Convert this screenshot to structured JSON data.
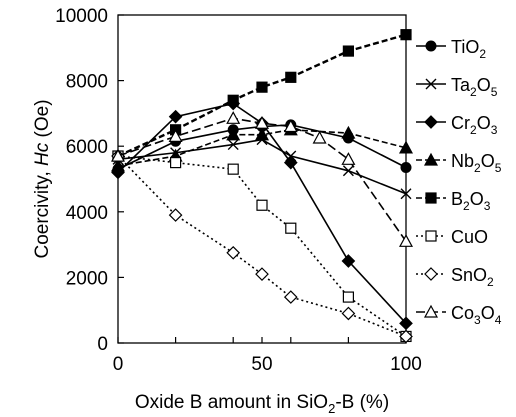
{
  "chart_data": {
    "type": "line",
    "xlabel": {
      "pre": "Oxide B amount in SiO",
      "sub": "2",
      "post": "-B (%)"
    },
    "ylabel": {
      "pre": "Coercivity, ",
      "italic": "Hc",
      "post": " (Oe)"
    },
    "xlim": [
      0,
      100
    ],
    "ylim": [
      0,
      10000
    ],
    "x_ticks": [
      0,
      20,
      40,
      50,
      60,
      80,
      100
    ],
    "x_tick_labels": [
      0,
      50,
      100
    ],
    "y_ticks": [
      0,
      2000,
      4000,
      6000,
      8000,
      10000
    ],
    "grid": false,
    "legend_position": "right",
    "series": [
      {
        "name": "TiO2",
        "label_parts": [
          [
            "TiO",
            false
          ],
          [
            "2",
            true
          ]
        ],
        "marker": "circle",
        "dash": "solid",
        "x": [
          0,
          20,
          40,
          50,
          60,
          80,
          100
        ],
        "y": [
          5300,
          6150,
          6500,
          6600,
          6650,
          6250,
          5350
        ]
      },
      {
        "name": "Ta2O5",
        "label_parts": [
          [
            "Ta",
            false
          ],
          [
            "2",
            true
          ],
          [
            "O",
            false
          ],
          [
            "5",
            true
          ]
        ],
        "marker": "x",
        "dash": "solid",
        "x": [
          0,
          20,
          40,
          50,
          60,
          80,
          100
        ],
        "y": [
          5600,
          5800,
          6050,
          6200,
          5700,
          5250,
          4550
        ]
      },
      {
        "name": "Cr2O3",
        "label_parts": [
          [
            "Cr",
            false
          ],
          [
            "2",
            true
          ],
          [
            "O",
            false
          ],
          [
            "3",
            true
          ]
        ],
        "marker": "diamond-filled",
        "dash": "solid",
        "x": [
          0,
          20,
          40,
          50,
          60,
          80,
          100
        ],
        "y": [
          5200,
          6900,
          7300,
          6700,
          5500,
          2500,
          600
        ]
      },
      {
        "name": "Nb2O5",
        "label_parts": [
          [
            "Nb",
            false
          ],
          [
            "2",
            true
          ],
          [
            "O",
            false
          ],
          [
            "5",
            true
          ]
        ],
        "marker": "triangle-filled",
        "dash": "dash",
        "x": [
          0,
          20,
          40,
          50,
          60,
          80,
          100
        ],
        "y": [
          5400,
          5700,
          6350,
          6350,
          6500,
          6400,
          5950
        ]
      },
      {
        "name": "B2O3",
        "label_parts": [
          [
            "B",
            false
          ],
          [
            "2",
            true
          ],
          [
            "O",
            false
          ],
          [
            "3",
            true
          ]
        ],
        "marker": "square-filled",
        "dash": "dash",
        "x": [
          0,
          20,
          40,
          50,
          60,
          80,
          100
        ],
        "y": [
          5700,
          6500,
          7400,
          7800,
          8100,
          8900,
          9400
        ]
      },
      {
        "name": "CuO",
        "label_parts": [
          [
            "CuO",
            false
          ]
        ],
        "marker": "square-open",
        "dash": "dot",
        "x": [
          0,
          20,
          40,
          50,
          60,
          80,
          100
        ],
        "y": [
          5700,
          5500,
          5300,
          4200,
          3500,
          1400,
          200
        ]
      },
      {
        "name": "SnO2",
        "label_parts": [
          [
            "SnO",
            false
          ],
          [
            "2",
            true
          ]
        ],
        "marker": "diamond-open",
        "dash": "dot",
        "x": [
          0,
          20,
          40,
          50,
          60,
          80,
          100
        ],
        "y": [
          5700,
          3900,
          2750,
          2100,
          1400,
          900,
          200
        ]
      },
      {
        "name": "Co3O4",
        "label_parts": [
          [
            "Co",
            false
          ],
          [
            "3",
            true
          ],
          [
            "O",
            false
          ],
          [
            "4",
            true
          ]
        ],
        "marker": "triangle-open",
        "dash": "longdash",
        "x": [
          0,
          20,
          40,
          50,
          60,
          70,
          80,
          100
        ],
        "y": [
          5700,
          6300,
          6850,
          6700,
          6600,
          6250,
          5600,
          3100
        ]
      }
    ]
  }
}
